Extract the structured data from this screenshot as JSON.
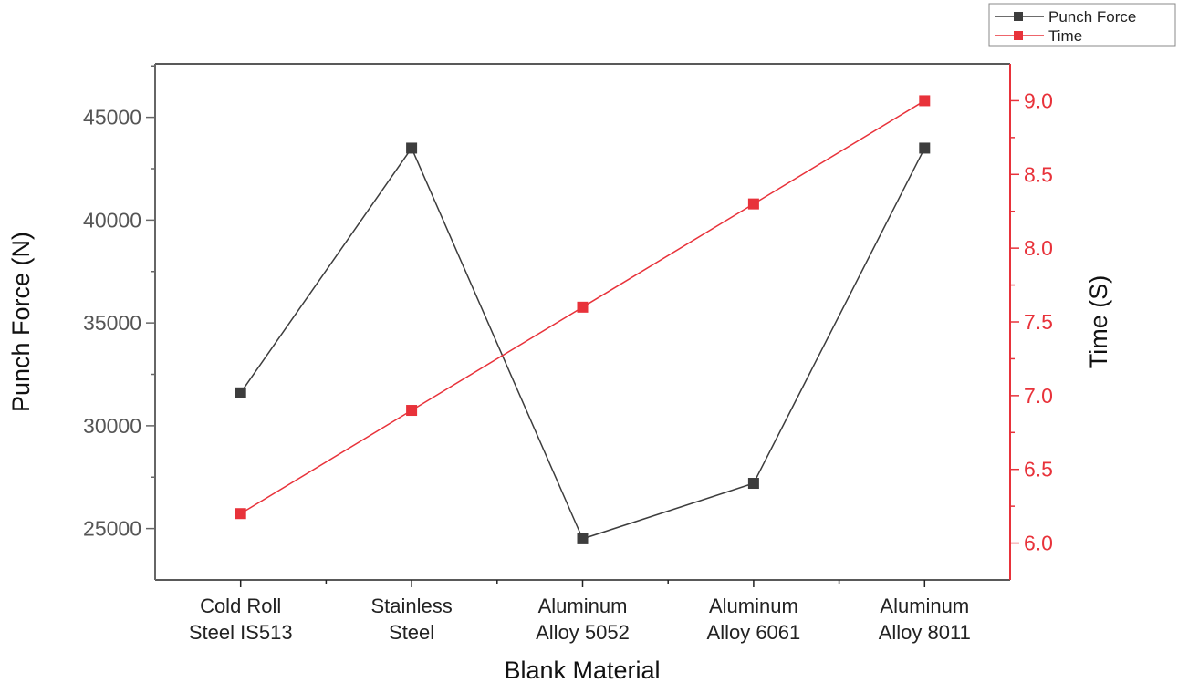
{
  "chart_data": {
    "type": "line",
    "title": "",
    "xlabel": "Blank Material",
    "ylabel": "Punch Force (N)",
    "y2label": "Time (S)",
    "categories": [
      [
        "Cold Roll",
        "Steel IS513"
      ],
      [
        "Stainless",
        "Steel"
      ],
      [
        "Aluminum",
        "Alloy 5052"
      ],
      [
        "Aluminum",
        "Alloy 6061"
      ],
      [
        "Aluminum",
        "Alloy 8011"
      ]
    ],
    "ylim": [
      22500,
      47600
    ],
    "y2lim": [
      5.75,
      9.25
    ],
    "yticks": [
      25000,
      30000,
      35000,
      40000,
      45000
    ],
    "y2ticks": [
      "6.0",
      "6.5",
      "7.0",
      "7.5",
      "8.0",
      "8.5",
      "9.0"
    ],
    "legend_position": "top-right",
    "grid": false,
    "series": [
      {
        "name": "Punch Force",
        "axis": "left",
        "color": "#3d3d3d",
        "values": [
          31600,
          43500,
          24500,
          27200,
          43500
        ]
      },
      {
        "name": "Time",
        "axis": "right",
        "color": "#e8323a",
        "values": [
          6.2,
          6.9,
          7.6,
          8.3,
          9.0
        ]
      }
    ]
  }
}
